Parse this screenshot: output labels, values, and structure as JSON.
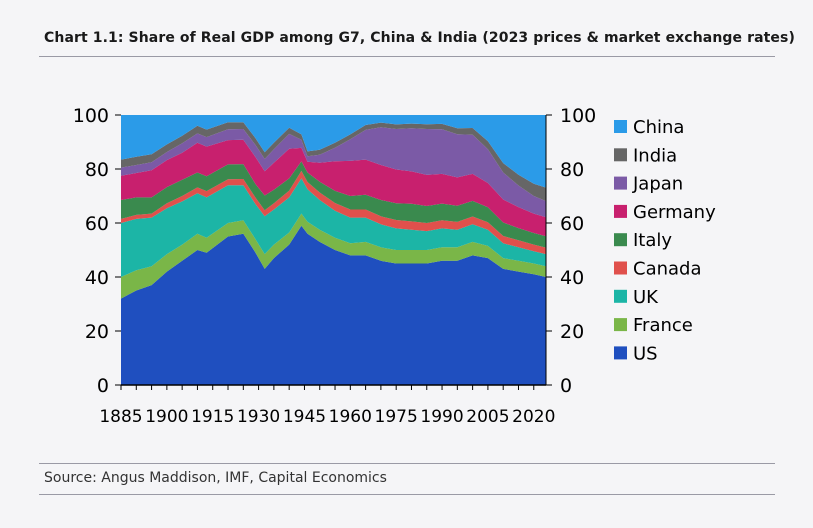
{
  "title": "Chart 1.1: Share of Real GDP among G7, China & India (2023 prices & market exchange rates)",
  "source": "Source: Angus Maddison, IMF, Capital Economics",
  "chart_data": {
    "type": "area",
    "stacked": true,
    "title": "",
    "xlabel": "",
    "ylabel": "",
    "xlim": [
      1885,
      2024
    ],
    "ylim": [
      0,
      100
    ],
    "x_ticks": [
      "1885",
      "1900",
      "1915",
      "1930",
      "1945",
      "1960",
      "1975",
      "1990",
      "2005",
      "2020"
    ],
    "y_ticks": [
      "0",
      "20",
      "40",
      "60",
      "80",
      "100"
    ],
    "y_ticks_right": [
      "0",
      "20",
      "40",
      "60",
      "80",
      "100"
    ],
    "grid": false,
    "legend_position": "right",
    "x": [
      1885,
      1890,
      1895,
      1900,
      1905,
      1910,
      1913,
      1920,
      1925,
      1929,
      1932,
      1935,
      1940,
      1944,
      1946,
      1950,
      1955,
      1960,
      1965,
      1970,
      1975,
      1980,
      1985,
      1990,
      1995,
      2000,
      2005,
      2010,
      2015,
      2020,
      2024
    ],
    "series": [
      {
        "name": "US",
        "color": "#1f4fbf",
        "values": [
          32,
          35,
          37,
          42,
          46,
          50,
          49,
          55,
          56,
          49,
          43,
          47,
          52,
          59,
          56,
          53,
          50,
          48,
          48,
          46,
          45,
          45,
          45,
          46,
          46,
          48,
          47,
          43,
          42,
          41,
          40
        ]
      },
      {
        "name": "France",
        "color": "#7ab648",
        "values": [
          8,
          7.5,
          7,
          6.5,
          6,
          6,
          5.5,
          5,
          5,
          5,
          5.5,
          5,
          4.5,
          4.5,
          4.5,
          4.5,
          4.5,
          4.5,
          5,
          5,
          5,
          5,
          5,
          5,
          5,
          5,
          4.5,
          4,
          4,
          4,
          4
        ]
      },
      {
        "name": "UK",
        "color": "#1cb5a6",
        "values": [
          20,
          19,
          18,
          17,
          16,
          15,
          15,
          14,
          13,
          13,
          14,
          13,
          13,
          13,
          12,
          11,
          10,
          9.5,
          9,
          8.5,
          8,
          7.5,
          7,
          7,
          6.5,
          6.5,
          6,
          5.5,
          5,
          4.5,
          4.5
        ]
      },
      {
        "name": "Canada",
        "color": "#e0504c",
        "values": [
          1.5,
          1.5,
          1.5,
          1.8,
          2,
          2.2,
          2.3,
          2.2,
          2.3,
          2.4,
          2.2,
          2.3,
          2.5,
          2.8,
          2.7,
          2.8,
          2.9,
          3,
          3,
          3,
          3.1,
          3.1,
          3,
          3,
          2.9,
          2.9,
          2.8,
          2.7,
          2.6,
          2.5,
          2.4
        ]
      },
      {
        "name": "Italy",
        "color": "#3a8a4e",
        "values": [
          7,
          6.5,
          6,
          6,
          6,
          5.5,
          5.5,
          5.5,
          5.5,
          5,
          5.5,
          5,
          4.5,
          3.5,
          3.5,
          4,
          4.5,
          5,
          5.5,
          6,
          6.2,
          6.5,
          6.3,
          6.2,
          6,
          5.8,
          5.5,
          5,
          4.5,
          4.3,
          4.2
        ]
      },
      {
        "name": "Germany",
        "color": "#c8206e",
        "values": [
          9,
          9,
          10,
          10,
          10,
          11,
          11,
          9,
          9,
          10,
          9,
          10,
          11,
          5,
          4,
          7,
          11,
          13,
          13,
          13,
          12.5,
          12,
          11.5,
          11,
          10.5,
          10,
          9,
          8.5,
          7.8,
          7.2,
          7
        ]
      },
      {
        "name": "Japan",
        "color": "#7b5aa6",
        "values": [
          3,
          3,
          3,
          3,
          3.5,
          3.5,
          3.5,
          4,
          4,
          4.5,
          4.5,
          5,
          5.5,
          3,
          2,
          3,
          5,
          8,
          11,
          14,
          15,
          16,
          17,
          16.5,
          16,
          14.5,
          12.5,
          10,
          8,
          6.5,
          6
        ]
      },
      {
        "name": "India",
        "color": "#666666",
        "values": [
          3,
          3,
          3,
          2.8,
          2.8,
          2.8,
          2.8,
          2.6,
          2.5,
          2.5,
          2.5,
          2.4,
          2.3,
          2,
          1.8,
          1.8,
          1.8,
          1.8,
          1.8,
          1.7,
          1.7,
          1.7,
          1.8,
          2,
          2.2,
          2.5,
          3,
          3.5,
          4,
          4.5,
          5
        ]
      }
    ],
    "top_series": {
      "name": "China",
      "color": "#2b9be8",
      "fills_to": 100
    }
  }
}
